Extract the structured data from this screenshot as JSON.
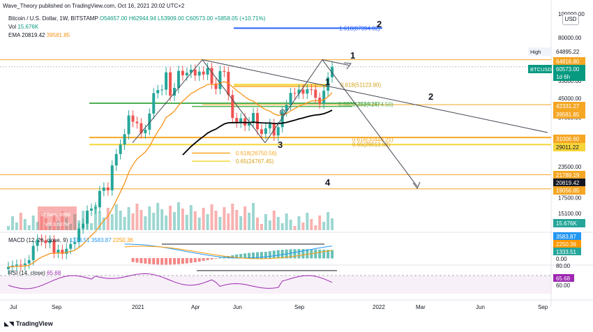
{
  "header": {
    "published": "Wave_Theory published on TradingView.com, Oct 16, 2021 20:02 UTC+2",
    "symbol_line": {
      "symbol": "Bitcoin / U.S. Dollar, 1W, BITSTAMP",
      "ohlc": "O54657.00  H62944.94  L53909.00  C60573.00",
      "change": "+5858.05 (+10.71%)"
    },
    "vol_line": {
      "label": "Vol",
      "value": "15.676K"
    },
    "ema_line": {
      "label": "EMA",
      "v1": "20819.42",
      "v2": "39581.85"
    }
  },
  "usd_button": "USD",
  "branding": "TradingView",
  "panes": {
    "macd": {
      "title": "MACD (12, 26, close, 9)",
      "v1": "1333.51",
      "v2": "3583.87",
      "v3": "2250.36"
    },
    "rsi": {
      "title": "RSI (14, close)",
      "v1": "65.68"
    }
  },
  "colors": {
    "up": "#26a69a",
    "down": "#ef5350",
    "ema_long": "#000000",
    "ema_short": "#f7931a",
    "fib_orange": "#f5a623",
    "fib_yellow": "#f6d53b",
    "green_line": "#4caf50",
    "blue_line": "#2962ff",
    "rsi": "#9c27b0",
    "macd": "#2196f3",
    "signal": "#ff9800"
  },
  "chart_data": {
    "type": "candlestick",
    "symbol": "BTCUSD",
    "timeframe": "1W",
    "yscale": "log",
    "x_ticks": [
      "Jul",
      "Sep",
      "2021",
      "Apr",
      "Jun",
      "Sep",
      "2022",
      "Mar",
      "Jun",
      "Sep"
    ],
    "y_ticks": [
      "100000.00",
      "80000.00",
      "64000.00",
      "53000.00",
      "45000.00",
      "37500.00",
      "31000.00",
      "23500.00",
      "17500.00",
      "15100.00"
    ],
    "price_labels": [
      {
        "text": "High",
        "value": "64895.22"
      },
      {
        "text": "",
        "value": "64816.80"
      },
      {
        "text": "BTCUSD",
        "value": "60573.00"
      },
      {
        "text": "",
        "value": "1d 6h"
      },
      {
        "text": "",
        "value": "42331.27"
      },
      {
        "text": "",
        "value": "39581.85"
      },
      {
        "text": "",
        "value": "31006.60"
      },
      {
        "text": "",
        "value": "29011.22"
      },
      {
        "text": "",
        "value": "21789.19"
      },
      {
        "text": "",
        "value": "20819.42"
      },
      {
        "text": "",
        "value": "19056.85"
      },
      {
        "text": "",
        "value": "15.676K"
      }
    ],
    "fib_labels": [
      {
        "text": "1.618(87394.02)",
        "value": 87394.02
      },
      {
        "text": "0.618(51123.90)",
        "value": 51123.9
      },
      {
        "text": "0.382(42474.50)",
        "value": 42474.5
      },
      {
        "text": "0.382(42584.15)",
        "value": 42584.15
      },
      {
        "text": "0.618(30448.21)",
        "value": 30448.21
      },
      {
        "text": "0.65(29013.68)",
        "value": 29013.68
      },
      {
        "text": "0.618(26750.56)",
        "value": 26750.56
      },
      {
        "text": "0.65(24767.45)",
        "value": 24767.45
      }
    ],
    "wave_labels": [
      "1",
      "2",
      "3",
      "4",
      "1",
      "2"
    ],
    "volume_box": {
      "line1": "57 bars, 399d",
      "line2": "Vol 3.607M"
    },
    "macd_axis": [
      "3583.87",
      "2250.36",
      "1333.51",
      "0.00"
    ],
    "rsi_axis": [
      "80.00",
      "65.68",
      "60.00"
    ]
  }
}
